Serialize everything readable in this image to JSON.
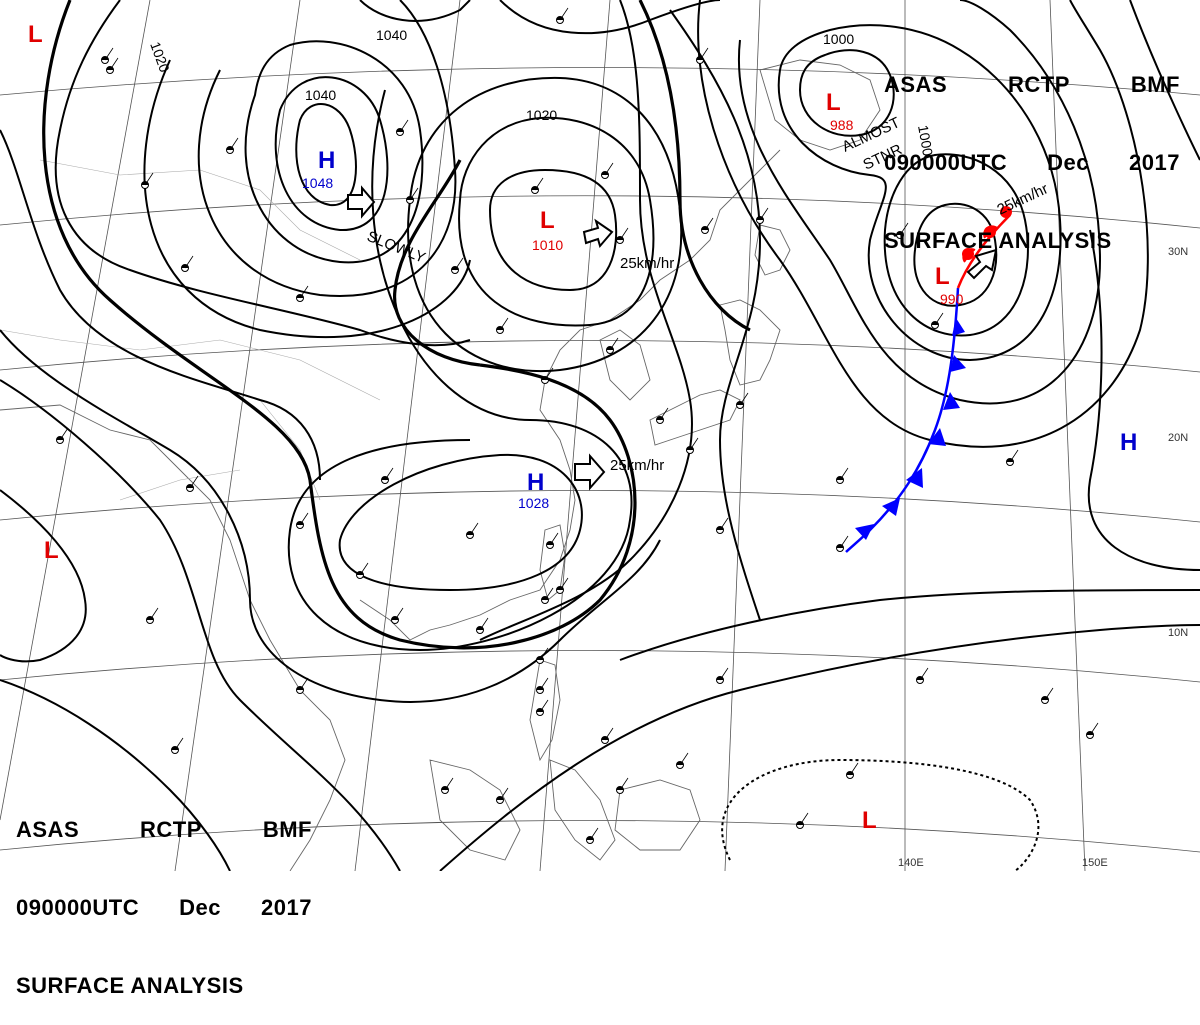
{
  "header_top_right": {
    "line1": [
      "ASAS",
      "RCTP",
      "BMF"
    ],
    "line2": [
      "090000UTC",
      "Dec",
      "2017"
    ],
    "line3": "SURFACE ANALYSIS"
  },
  "header_bottom_left": {
    "line1": [
      "ASAS",
      "RCTP",
      "BMF"
    ],
    "line2": [
      "090000UTC",
      "Dec",
      "2017"
    ],
    "line3": "SURFACE ANALYSIS"
  },
  "pressure_centers": [
    {
      "type": "H",
      "value": "1048",
      "color": "#0000cc"
    },
    {
      "type": "L",
      "value": "1010",
      "color": "#e00000"
    },
    {
      "type": "H",
      "value": "1028",
      "color": "#0000cc"
    },
    {
      "type": "L",
      "value": "988",
      "color": "#e00000"
    },
    {
      "type": "L",
      "value": "990",
      "color": "#e00000"
    },
    {
      "type": "H",
      "value": "",
      "color": "#0000cc"
    },
    {
      "type": "L",
      "value": "",
      "color": "#e00000"
    },
    {
      "type": "L",
      "value": "",
      "color": "#e00000"
    },
    {
      "type": "L",
      "value": "",
      "color": "#e00000"
    }
  ],
  "isobar_labels": [
    "1020",
    "1040",
    "1040",
    "1020",
    "1000",
    "1000"
  ],
  "movement_labels": [
    "SLOWLY",
    "25km/hr",
    "25km/hr",
    "25km/hr",
    "ALMOST",
    "STNR"
  ],
  "lat_labels": [
    "30N",
    "20N",
    "10N"
  ],
  "lon_labels": [
    "140E",
    "150E"
  ],
  "colors": {
    "high": "#0000cc",
    "low": "#e00000",
    "cold_front": "#0000ff",
    "warm_front": "#ff0000",
    "isobar": "#000000",
    "geo": "#555555"
  }
}
